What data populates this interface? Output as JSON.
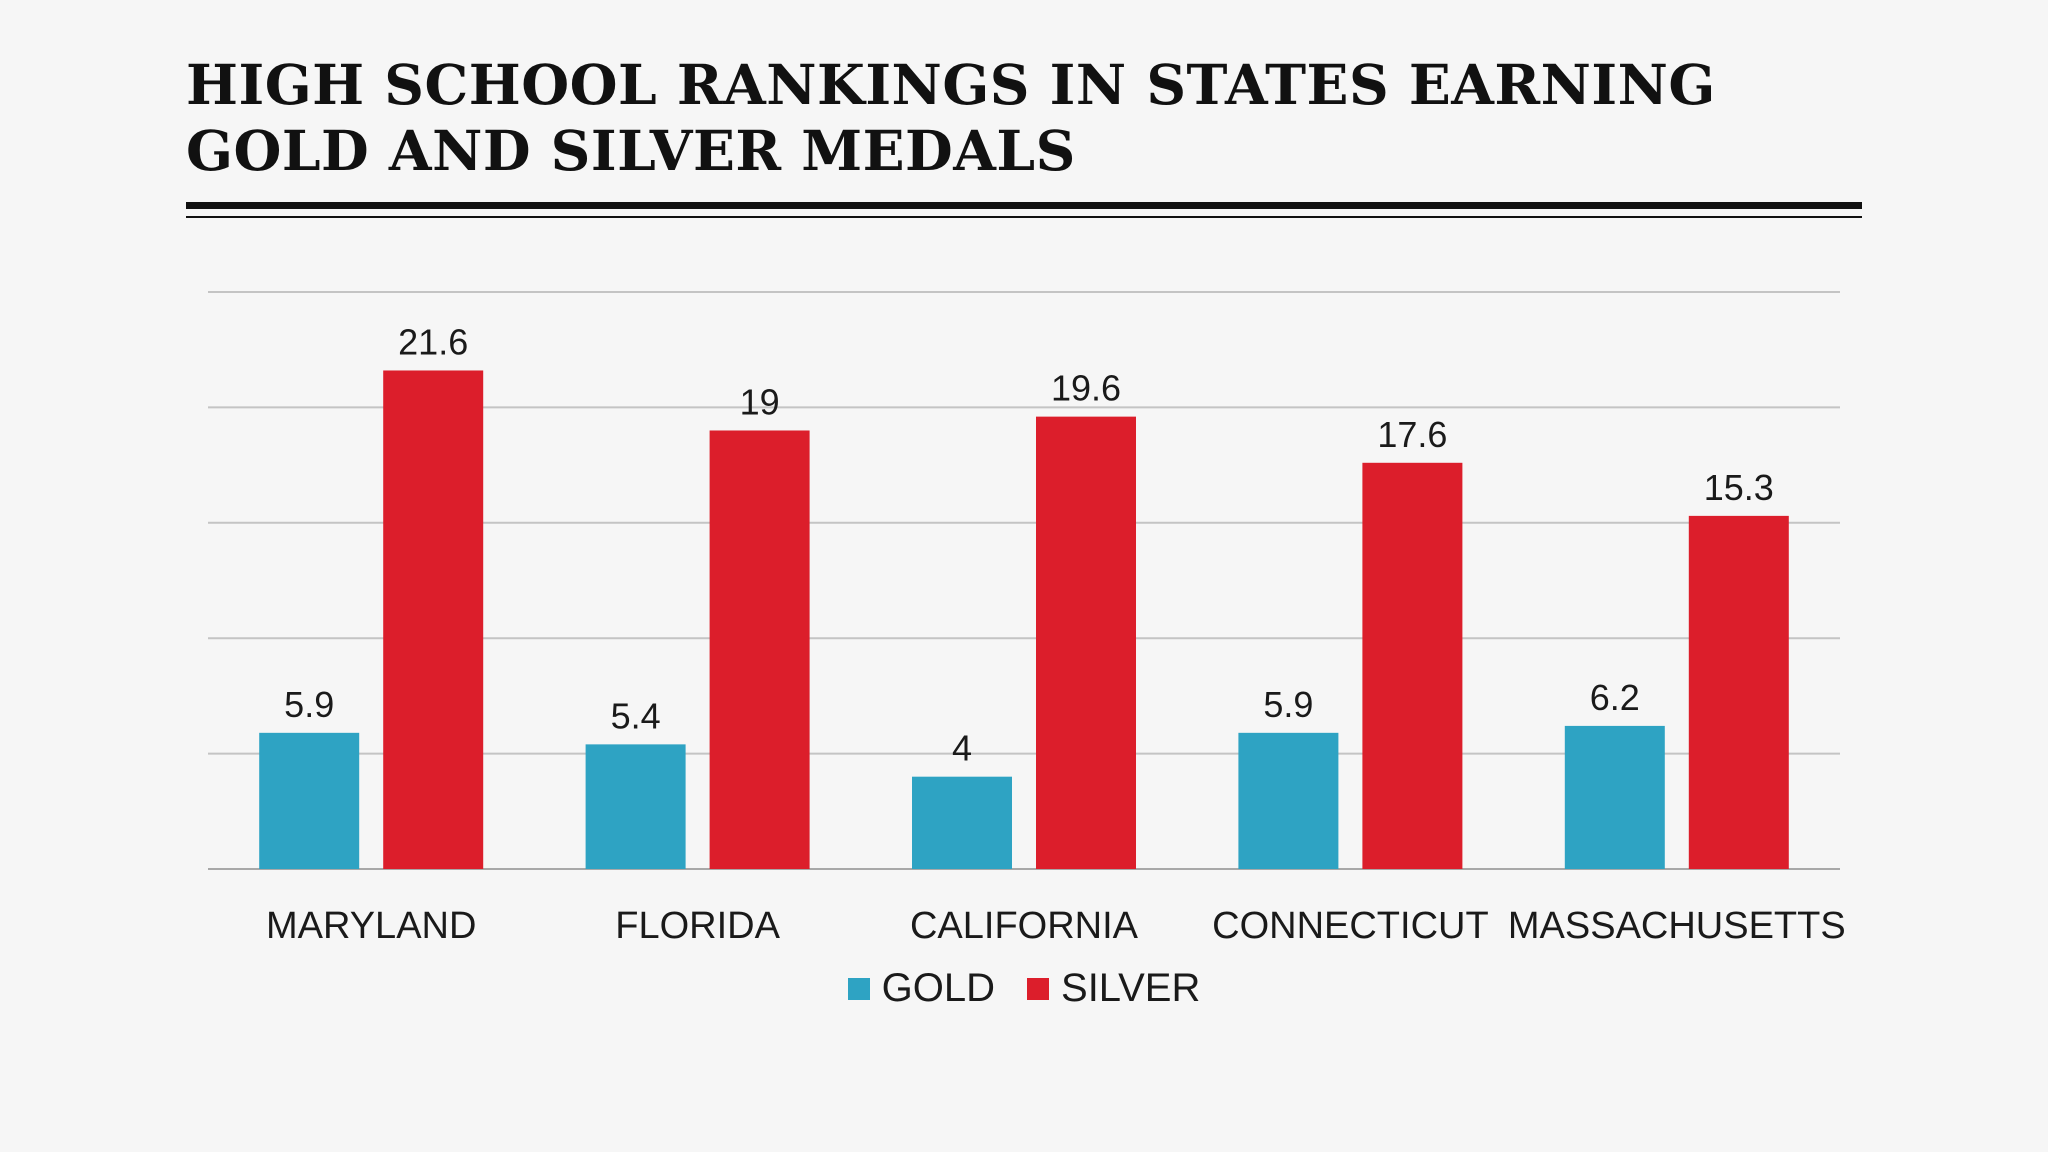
{
  "chart_data": {
    "type": "bar",
    "title": "HIGH SCHOOL RANKINGS IN STATES EARNING GOLD AND SILVER MEDALS",
    "categories": [
      "MARYLAND",
      "FLORIDA",
      "CALIFORNIA",
      "CONNECTICUT",
      "MASSACHUSETTS"
    ],
    "series": [
      {
        "name": "GOLD",
        "color": "#2ea3c3",
        "values": [
          5.9,
          5.4,
          4,
          5.9,
          6.2
        ]
      },
      {
        "name": "SILVER",
        "color": "#dc1e2b",
        "values": [
          21.6,
          19,
          19.6,
          17.6,
          15.3
        ]
      }
    ],
    "ylim": [
      0,
      25
    ],
    "gridlines": [
      0,
      5,
      10,
      15,
      20,
      25
    ],
    "grid": true,
    "legend_position": "bottom-center",
    "xlabel": "",
    "ylabel": ""
  }
}
